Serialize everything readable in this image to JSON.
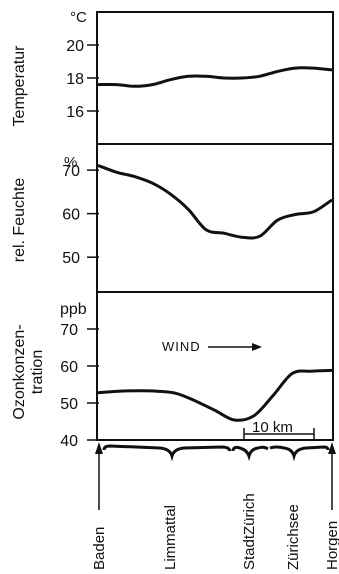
{
  "chart_data": [
    {
      "type": "line",
      "ylabel": "Temperatur",
      "unit": "°C",
      "ylim": [
        14,
        22
      ],
      "yticks": [
        "20",
        "18",
        "16"
      ],
      "series": [
        {
          "values": [
            17.6,
            17.6,
            17.5,
            17.6,
            17.9,
            18.1,
            18.1,
            18.0,
            18.0,
            18.1,
            18.4,
            18.6,
            18.6,
            18.5
          ]
        }
      ]
    },
    {
      "type": "line",
      "ylabel": "rel. Feuchte",
      "unit": "%",
      "ylim": [
        42,
        76
      ],
      "yticks": [
        "70",
        "60",
        "50"
      ],
      "series": [
        {
          "values": [
            71.0,
            69.5,
            68.5,
            67.0,
            64.5,
            61.0,
            56.3,
            55.5,
            54.6,
            54.8,
            58.5,
            59.8,
            60.4,
            63.0
          ]
        }
      ]
    },
    {
      "type": "line",
      "ylabel": "Ozonkonzen-tration",
      "unit": "ppb",
      "ylim": [
        40,
        80
      ],
      "yticks": [
        "70",
        "60",
        "50",
        "40"
      ],
      "annotation": "WIND",
      "series": [
        {
          "values": [
            52.8,
            53.2,
            53.3,
            53.2,
            52.6,
            50.5,
            48.0,
            45.4,
            46.5,
            52.0,
            58.0,
            58.6,
            58.8
          ]
        }
      ]
    }
  ],
  "x_axis": {
    "scale_label": "10 km",
    "locations": [
      "Baden",
      "Limmattal",
      "StadtZürich",
      "Zürichsee",
      "Horgen"
    ]
  }
}
